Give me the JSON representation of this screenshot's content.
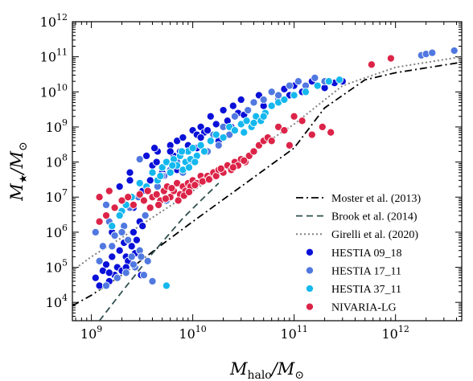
{
  "chart_data": {
    "type": "scatter",
    "xscale": "log",
    "yscale": "log",
    "xlim": [
      650000000.0,
      4500000000000.0
    ],
    "ylim": [
      3000.0,
      1000000000000.0
    ],
    "xlabel": {
      "main": "M",
      "sub": "halo",
      "rest": "/M",
      "sun": "⊙"
    },
    "ylabel": {
      "main": "M",
      "sub": "★",
      "rest": "/M",
      "sun": "⊙"
    },
    "x_ticks": [
      {
        "value": 1000000000.0,
        "mant": "10",
        "exp": "9"
      },
      {
        "value": 10000000000.0,
        "mant": "10",
        "exp": "10"
      },
      {
        "value": 100000000000.0,
        "mant": "10",
        "exp": "11"
      },
      {
        "value": 1000000000000.0,
        "mant": "10",
        "exp": "12"
      }
    ],
    "y_ticks": [
      {
        "value": 10000.0,
        "mant": "10",
        "exp": "4"
      },
      {
        "value": 100000.0,
        "mant": "10",
        "exp": "5"
      },
      {
        "value": 1000000.0,
        "mant": "10",
        "exp": "6"
      },
      {
        "value": 10000000.0,
        "mant": "10",
        "exp": "7"
      },
      {
        "value": 100000000.0,
        "mant": "10",
        "exp": "8"
      },
      {
        "value": 1000000000.0,
        "mant": "10",
        "exp": "9"
      },
      {
        "value": 10000000000.0,
        "mant": "10",
        "exp": "10"
      },
      {
        "value": 100000000000.0,
        "mant": "10",
        "exp": "11"
      },
      {
        "value": 1000000000000.0,
        "mant": "10",
        "exp": "12"
      }
    ],
    "grid": false,
    "legend_position": "lower-right",
    "lines": [
      {
        "name": "Moster et al. (2013)",
        "style": "dashdot",
        "color": "#000000",
        "x": [
          650000000.0,
          1000000000.0,
          2000000000.0,
          5000000000.0,
          10000000000.0,
          30000000000.0,
          100000000000.0,
          200000000000.0,
          500000000000.0,
          1000000000000.0,
          4500000000000.0
        ],
        "y": [
          8000.0,
          16000.0,
          60000.0,
          450000.0,
          2000000.0,
          20000000.0,
          250000000.0,
          3500000000.0,
          22000000000.0,
          35000000000.0,
          70000000000.0
        ]
      },
      {
        "name": "Brook et al. (2014)",
        "style": "dashed",
        "color": "#2f4f4f",
        "x": [
          1200000000.0,
          2000000000.0,
          4000000000.0,
          8000000000.0,
          12000000000.0,
          18000000000.0
        ],
        "y": [
          3000.0,
          20000.0,
          250000.0,
          2500000.0,
          8000000.0,
          25000000.0
        ]
      },
      {
        "name": "Girelli et al. (2020)",
        "style": "dotted",
        "color": "#808080",
        "x": [
          650000000.0,
          1000000000.0,
          2000000000.0,
          5000000000.0,
          10000000000.0,
          30000000000.0,
          100000000000.0,
          300000000000.0,
          1000000000000.0,
          4500000000000.0
        ],
        "y": [
          80000.0,
          200000.0,
          700000.0,
          4000000.0,
          15000000.0,
          120000000.0,
          1200000000.0,
          15000000000.0,
          50000000000.0,
          100000000000.0
        ]
      }
    ],
    "series": [
      {
        "name": "HESTIA 09_18",
        "color": "#0a10d8",
        "x": [
          1100000000.0,
          1200000000.0,
          1300000000.0,
          1400000000.0,
          1500000000.0,
          1600000000.0,
          1700000000.0,
          1800000000.0,
          1900000000.0,
          2000000000.0,
          2100000000.0,
          2200000000.0,
          2300000000.0,
          2500000000.0,
          2600000000.0,
          2800000000.0,
          3000000000.0,
          3200000000.0,
          3400000000.0,
          1200000000.0,
          1500000000.0,
          1800000000.0,
          2200000000.0,
          2700000000.0,
          3100000000.0,
          1600000000.0,
          2000000000.0,
          2400000000.0,
          1900000000.0,
          2400000000.0,
          2900000000.0,
          3500000000.0,
          4000000000.0,
          4500000000.0,
          5000000000.0,
          5500000000.0,
          6000000000.0,
          6500000000.0,
          7000000000.0,
          7500000000.0,
          8000000000.0,
          9000000000.0,
          10000000000.0,
          11000000000.0,
          12000000000.0,
          13000000000.0,
          15000000000.0,
          17000000000.0,
          20000000000.0,
          22000000000.0,
          25000000000.0,
          28000000000.0,
          30000000000.0,
          35000000000.0,
          40000000000.0,
          45000000000.0,
          50000000000.0,
          60000000000.0,
          70000000000.0,
          80000000000.0,
          90000000000.0,
          100000000000.0,
          120000000000.0,
          150000000000.0,
          200000000000.0,
          250000000000.0,
          300000000000.0,
          3800000000.0,
          4400000000.0,
          5200000000.0,
          6000000000.0,
          7000000000.0,
          3200000000.0,
          2600000000.0,
          4200000000.0,
          11000000000.0,
          14000000000.0,
          18000000000.0,
          24000000000.0,
          32000000000.0,
          12000000000.0
        ],
        "y": [
          50000.0,
          30000.0,
          80000.0,
          120000.0,
          40000.0,
          200000.0,
          60000.0,
          100000.0,
          300000.0,
          80000.0,
          500000.0,
          200000.0,
          150000.0,
          400000.0,
          1000000.0,
          600000.0,
          2000000.0,
          1500000.0,
          3000000.0,
          150000.0,
          70000.0,
          50000.0,
          100000.0,
          250000.0,
          60000.0,
          1000000.0,
          8000000.0,
          30000000.0,
          20000000.0,
          50000000.0,
          10000000.0,
          150000000.0,
          80000000.0,
          200000000.0,
          50000000.0,
          100000000.0,
          300000000.0,
          150000000.0,
          400000000.0,
          200000000.0,
          500000000.0,
          300000000.0,
          800000000.0,
          600000000.0,
          1000000000.0,
          700000000.0,
          2000000000.0,
          1200000000.0,
          3000000000.0,
          1500000000.0,
          4000000000.0,
          2500000000.0,
          6000000000.0,
          3000000000.0,
          5000000000.0,
          8000000000.0,
          4000000000.0,
          10000000000.0,
          6000000000.0,
          12000000000.0,
          8000000000.0,
          15000000000.0,
          10000000000.0,
          20000000000.0,
          13000000000.0,
          18000000000.0,
          20000000000.0,
          30000000.0,
          100000000.0,
          40000000.0,
          200000000.0,
          60000000.0,
          15000000.0,
          5000000.0,
          250000000.0,
          250000000.0,
          800000000.0,
          400000000.0,
          1000000000.0,
          2200000000.0,
          500000000.0
        ]
      },
      {
        "name": "HESTIA 17_11",
        "color": "#5078e0",
        "x": [
          1100000000.0,
          1300000000.0,
          1500000000.0,
          1700000000.0,
          1900000000.0,
          2100000000.0,
          2300000000.0,
          2500000000.0,
          2700000000.0,
          3000000000.0,
          3300000000.0,
          3600000000.0,
          4000000000.0,
          1400000000.0,
          1800000000.0,
          2200000000.0,
          2600000000.0,
          3100000000.0,
          1600000000.0,
          2000000000.0,
          2400000000.0,
          2900000000.0,
          3400000000.0,
          1200000000.0,
          4500000000.0,
          5000000000.0,
          5500000000.0,
          6000000000.0,
          7000000000.0,
          8000000000.0,
          9000000000.0,
          10000000000.0,
          12000000000.0,
          14000000000.0,
          16000000000.0,
          18000000000.0,
          20000000000.0,
          23000000000.0,
          26000000000.0,
          30000000000.0,
          35000000000.0,
          40000000000.0,
          50000000000.0,
          60000000000.0,
          70000000000.0,
          90000000000.0,
          110000000000.0,
          130000000000.0,
          160000000000.0,
          200000000000.0,
          220000000000.0,
          1800000000000.0,
          2000000000000.0,
          2300000000000.0,
          3800000000000.0,
          3000000000.0,
          2500000000.0,
          1400000000.0
        ],
        "y": [
          1000000.0,
          400000.0,
          2000000.0,
          800000.0,
          3000000.0,
          1500000.0,
          600000.0,
          200000.0,
          100000.0,
          300000.0,
          60000.0,
          150000.0,
          40000.0,
          30000.0,
          50000.0,
          70000.0,
          120000.0,
          200000.0,
          400000.0,
          1000000.0,
          5000000.0,
          10000000.0,
          3000000.0,
          150000.0,
          20000000.0,
          40000000.0,
          8000000.0,
          60000000.0,
          100000000.0,
          50000000.0,
          200000000.0,
          100000000.0,
          300000000.0,
          200000000.0,
          600000000.0,
          300000000.0,
          1000000000.0,
          600000000.0,
          2000000000.0,
          1200000000.0,
          3000000000.0,
          5000000000.0,
          6000000000.0,
          10000000000.0,
          8000000000.0,
          15000000000.0,
          20000000000.0,
          15000000000.0,
          25000000000.0,
          20000000000.0,
          20000000000.0,
          110000000000.0,
          120000000000.0,
          130000000000.0,
          150000000000.0,
          120000000.0,
          10000000.0,
          6000000.0
        ]
      },
      {
        "name": "HESTIA 37_11",
        "color": "#14b8ee",
        "x": [
          2000000000.0,
          2500000000.0,
          3000000000.0,
          3500000000.0,
          4000000000.0,
          4500000000.0,
          5000000000.0,
          5500000000.0,
          6000000000.0,
          6500000000.0,
          7000000000.0,
          7500000000.0,
          8000000000.0,
          8500000000.0,
          9000000000.0,
          9500000000.0,
          10000000000.0,
          11000000000.0,
          12000000000.0,
          13000000000.0,
          15000000000.0,
          17000000000.0,
          20000000000.0,
          23000000000.0,
          26000000000.0,
          30000000000.0,
          34000000000.0,
          38000000000.0,
          42000000000.0,
          47000000000.0,
          52000000000.0,
          60000000000.0,
          70000000000.0,
          80000000000.0,
          100000000000.0,
          130000000000.0,
          170000000000.0,
          220000000000.0,
          280000000000.0,
          1600000000.0,
          1900000000.0,
          2200000000.0,
          5500000000.0,
          6300000000.0,
          4800000000.0,
          7800000000.0,
          9200000000.0,
          10500000000.0,
          32000000000.0,
          40000000000.0,
          50000000000.0
        ],
        "y": [
          4000000.0,
          10000000.0,
          25000000.0,
          20000000.0,
          50000000.0,
          30000000.0,
          70000000.0,
          100000000.0,
          50000000.0,
          120000000.0,
          80000000.0,
          150000000.0,
          60000000.0,
          100000000.0,
          200000000.0,
          120000000.0,
          250000000.0,
          150000000.0,
          300000000.0,
          200000000.0,
          400000000.0,
          600000000.0,
          500000000.0,
          1000000000.0,
          800000000.0,
          1200000000.0,
          1500000000.0,
          1000000000.0,
          2000000000.0,
          1500000000.0,
          2500000000.0,
          4000000000.0,
          5000000000.0,
          6000000000.0,
          8000000000.0,
          10000000000.0,
          15000000000.0,
          20000000000.0,
          22000000000.0,
          1500000.0,
          3000000.0,
          6000000.0,
          30000.0,
          80000000.0,
          40000000.0,
          200000000.0,
          70000000.0,
          100000000.0,
          700000000.0,
          1300000000.0,
          2000000000.0
        ]
      },
      {
        "name": "NIVARIA-LG",
        "color": "#dc2448",
        "x": [
          1200000000.0,
          1400000000.0,
          1700000000.0,
          2000000000.0,
          2300000000.0,
          2600000000.0,
          3000000000.0,
          3300000000.0,
          3600000000.0,
          4000000000.0,
          4400000000.0,
          4800000000.0,
          5200000000.0,
          5600000000.0,
          6000000000.0,
          6500000000.0,
          7000000000.0,
          7500000000.0,
          8000000000.0,
          8500000000.0,
          9000000000.0,
          9500000000.0,
          10000000000.0,
          11000000000.0,
          12000000000.0,
          13000000000.0,
          14000000000.0,
          15000000000.0,
          16000000000.0,
          17000000000.0,
          18000000000.0,
          20000000000.0,
          22000000000.0,
          24000000000.0,
          26000000000.0,
          28000000000.0,
          30000000000.0,
          33000000000.0,
          36000000000.0,
          40000000000.0,
          45000000000.0,
          50000000000.0,
          55000000000.0,
          60000000000.0,
          70000000000.0,
          80000000000.0,
          90000000000.0,
          100000000000.0,
          120000000000.0,
          150000000000.0,
          190000000000.0,
          230000000000.0,
          1200000000.0,
          1500000000.0,
          3800000000.0,
          4600000000.0,
          5400000000.0,
          6200000000.0,
          7200000000.0,
          8200000000.0,
          9200000000.0,
          10500000000.0,
          12500000000.0,
          14500000000.0,
          19000000000.0,
          25000000000.0,
          32000000000.0,
          580000000000.0,
          900000000000.0
        ],
        "y": [
          10000000.0,
          3000000.0,
          5000000.0,
          8000000.0,
          10000000.0,
          6000000.0,
          12000000.0,
          8000000.0,
          15000000.0,
          10000000.0,
          12000000.0,
          8000000.0,
          15000000.0,
          20000000.0,
          10000000.0,
          15000000.0,
          25000000.0,
          12000000.0,
          20000000.0,
          15000000.0,
          25000000.0,
          20000000.0,
          30000000.0,
          25000000.0,
          40000000.0,
          30000000.0,
          40000000.0,
          35000000.0,
          50000000.0,
          40000000.0,
          60000000.0,
          50000000.0,
          80000000.0,
          60000000.0,
          100000000.0,
          80000000.0,
          120000000.0,
          100000000.0,
          150000000.0,
          200000000.0,
          300000000.0,
          400000000.0,
          500000000.0,
          400000000.0,
          1000000000.0,
          800000000.0,
          300000000.0,
          2000000000.0,
          1500000000.0,
          600000000.0,
          1000000000.0,
          700000000.0,
          2000000.0,
          15000000.0,
          5000000.0,
          6000000.0,
          9000000.0,
          18000000.0,
          8000000.0,
          11000000.0,
          14000000.0,
          22000000.0,
          28000000.0,
          32000000.0,
          65000000.0,
          70000000.0,
          110000000.0,
          60000000000.0,
          90000000000.0
        ]
      }
    ]
  }
}
